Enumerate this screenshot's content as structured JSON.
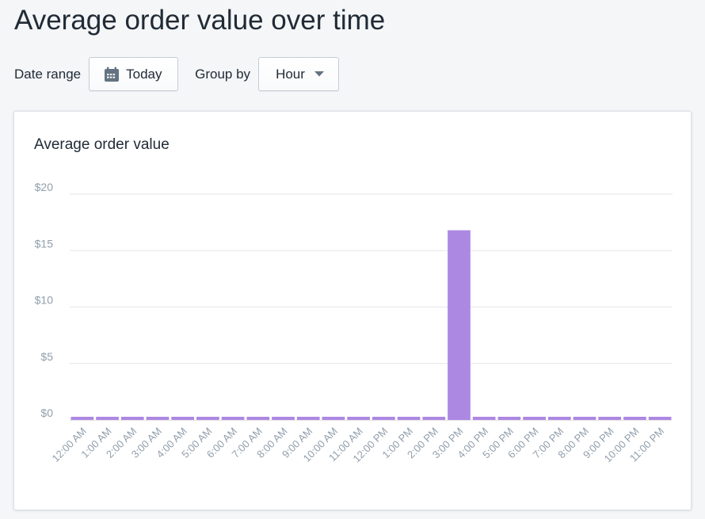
{
  "header": {
    "title": "Average order value over time"
  },
  "filters": {
    "date_range_label": "Date range",
    "date_range_value": "Today",
    "group_by_label": "Group by",
    "group_by_value": "Hour"
  },
  "card": {
    "title": "Average order value"
  },
  "colors": {
    "bar": "#ad88e3",
    "grid": "#e3e6e9",
    "tick_text": "#919eab"
  },
  "chart_data": {
    "type": "bar",
    "title": "Average order value",
    "xlabel": "",
    "ylabel": "",
    "ylim": [
      0,
      20
    ],
    "y_ticks": [
      "$0",
      "$5",
      "$10",
      "$15",
      "$20"
    ],
    "y_tick_values": [
      0,
      5,
      10,
      15,
      20
    ],
    "grid": true,
    "categories": [
      "12:00 AM",
      "1:00 AM",
      "2:00 AM",
      "3:00 AM",
      "4:00 AM",
      "5:00 AM",
      "6:00 AM",
      "7:00 AM",
      "8:00 AM",
      "9:00 AM",
      "10:00 AM",
      "11:00 AM",
      "12:00 PM",
      "1:00 PM",
      "2:00 PM",
      "3:00 PM",
      "4:00 PM",
      "5:00 PM",
      "6:00 PM",
      "7:00 PM",
      "8:00 PM",
      "9:00 PM",
      "10:00 PM",
      "11:00 PM"
    ],
    "values": [
      0,
      0,
      0,
      0,
      0,
      0,
      0,
      0,
      0,
      0,
      0,
      0,
      0,
      0,
      0,
      16.8,
      0,
      0,
      0,
      0,
      0,
      0,
      0,
      0
    ]
  }
}
